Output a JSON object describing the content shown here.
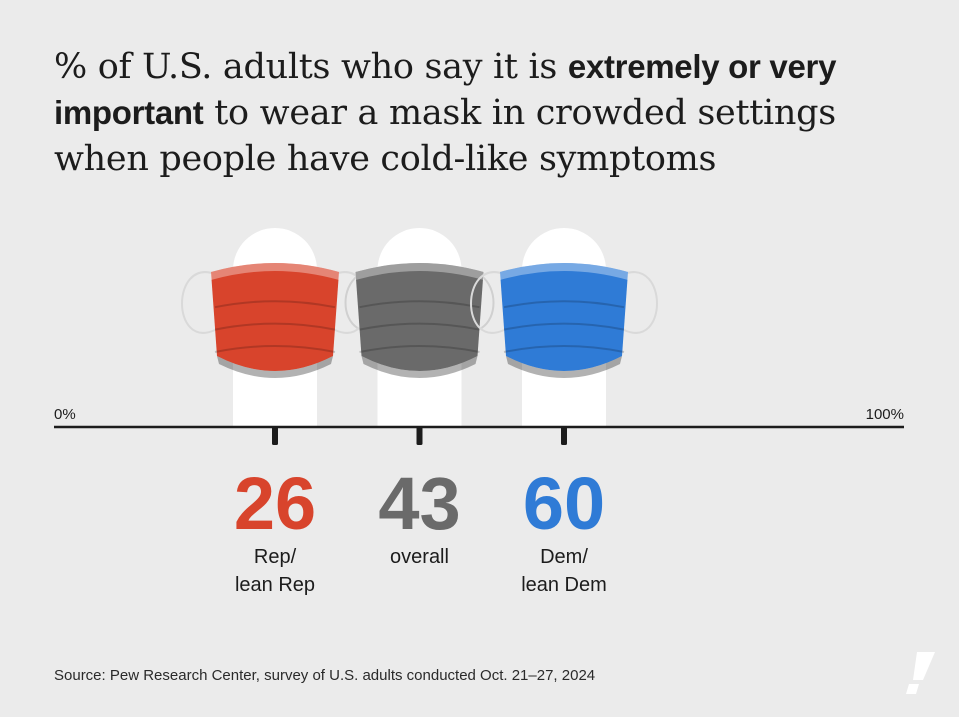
{
  "title": {
    "prefix": "% of U.S. adults who say it is ",
    "bold": "extremely or very important",
    "suffix": " to wear a mask in crowded settings when people have cold-like symptoms"
  },
  "source": "Source: Pew Research Center, survey of U.S. adults conducted Oct. 21–27, 2024",
  "colors": {
    "rep": "#d8442c",
    "overall": "#6a6a6a",
    "dem": "#2f7bd6",
    "axis": "#1c1c1c"
  },
  "chart_data": {
    "type": "dot",
    "xlim": [
      0,
      100
    ],
    "tick_labels": {
      "min": "0%",
      "max": "100%"
    },
    "categories": [
      {
        "id": "rep",
        "label_lines": [
          "Rep/",
          "lean Rep"
        ],
        "value": 26,
        "display": "26"
      },
      {
        "id": "overall",
        "label_lines": [
          "overall"
        ],
        "value": 43,
        "display": "43"
      },
      {
        "id": "dem",
        "label_lines": [
          "Dem/",
          "lean Dem"
        ],
        "value": 60,
        "display": "60"
      }
    ]
  }
}
